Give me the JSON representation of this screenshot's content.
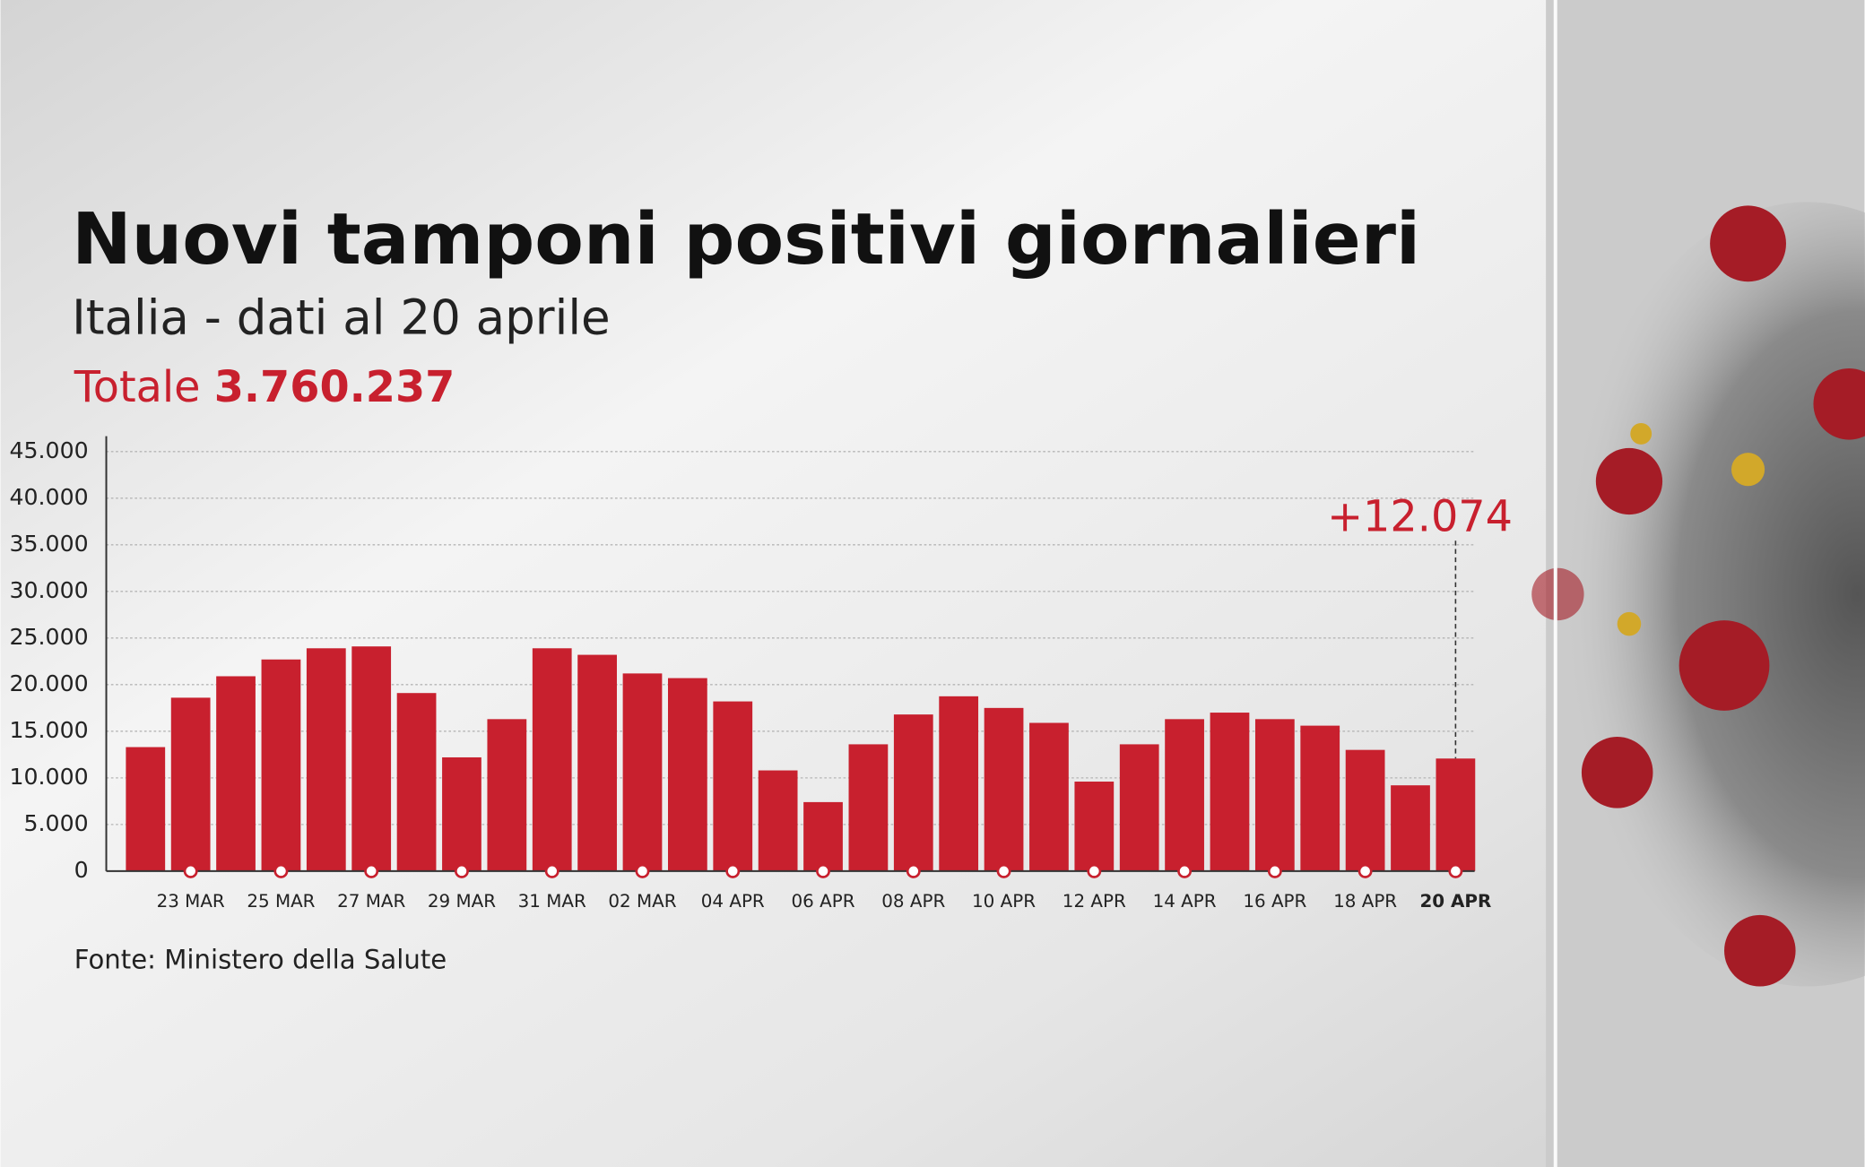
{
  "chart_data": {
    "type": "bar",
    "title": "Nuovi tamponi positivi giornalieri",
    "subtitle": "Italia - dati al 20 aprile",
    "total_label": "Totale",
    "total": "3.760.237",
    "source": "Fonte: Ministero della Salute",
    "categories": [
      null,
      "23 MAR",
      null,
      "25 MAR",
      null,
      "27 MAR",
      null,
      "29 MAR",
      null,
      "31 MAR",
      null,
      "02 MAR",
      null,
      "04 APR",
      null,
      "06 APR",
      null,
      "08 APR",
      null,
      "10 APR",
      null,
      "12 APR",
      null,
      "14 APR",
      null,
      "16 APR",
      null,
      "18 APR",
      null,
      "20 APR"
    ],
    "values": [
      13300,
      18600,
      20900,
      22700,
      23900,
      24100,
      19100,
      12200,
      16300,
      23900,
      23200,
      21200,
      20700,
      18200,
      10800,
      7400,
      13600,
      16800,
      18750,
      17500,
      15900,
      9600,
      13600,
      16300,
      17000,
      16300,
      15600,
      13000,
      9200,
      12074
    ],
    "value_labels": [
      null,
      null,
      null,
      null,
      null,
      null,
      null,
      null,
      null,
      null,
      null,
      null,
      null,
      null,
      null,
      null,
      null,
      null,
      null,
      null,
      null,
      null,
      null,
      null,
      null,
      null,
      null,
      null,
      null,
      "+12.074"
    ],
    "color": "#c8202e",
    "ylim": [
      0,
      45000
    ],
    "yticks": [
      0,
      {
        "value": 5000,
        "label": "5.000"
      },
      {
        "value": 10000,
        "label": "10.000"
      },
      {
        "value": 15000,
        "label": "15.000"
      },
      {
        "value": 20000,
        "label": "20.000"
      },
      {
        "value": 25000,
        "label": "25.000"
      },
      {
        "value": 30000,
        "label": "30.000"
      },
      {
        "value": 35000,
        "label": "35.000"
      },
      {
        "value": 40000,
        "label": "40.000"
      },
      {
        "value": 45000,
        "label": "45.000"
      }
    ],
    "grid": true
  }
}
